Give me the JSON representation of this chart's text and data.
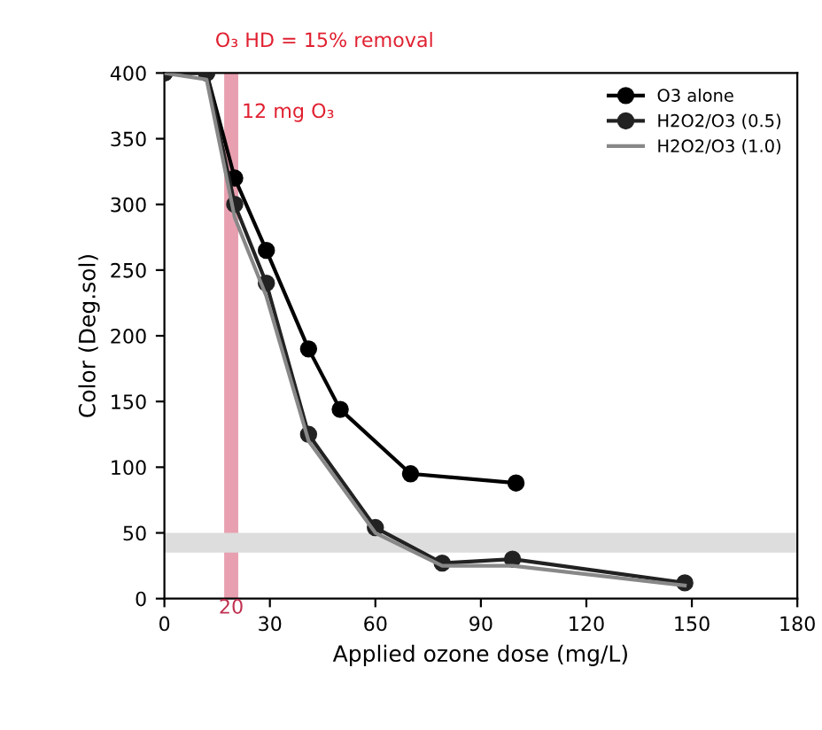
{
  "chart_data": {
    "type": "line",
    "xlabel": "Applied ozone dose (mg/L)",
    "ylabel": "Color (Deg.sol)",
    "xlim": [
      0,
      180
    ],
    "xticks": [
      0,
      30,
      60,
      90,
      120,
      150,
      180
    ],
    "ylim": [
      0,
      400
    ],
    "yticks": [
      0,
      50,
      100,
      150,
      200,
      250,
      300,
      350,
      400
    ],
    "series": [
      {
        "name": "O3 alone",
        "color": "#000000",
        "marker": "circle",
        "x": [
          0,
          12,
          20,
          29,
          41,
          50,
          70,
          100
        ],
        "values": [
          400,
          400,
          320,
          265,
          190,
          144,
          95,
          88
        ]
      },
      {
        "name": "H2O2/O3 (0.5)",
        "color": "#222222",
        "marker": "circle",
        "x": [
          0,
          12,
          20,
          29,
          41,
          60,
          79,
          99,
          148
        ],
        "values": [
          400,
          400,
          300,
          240,
          125,
          54,
          27,
          30,
          12
        ]
      },
      {
        "name": "H2O2/O3 (1.0)",
        "color": "#888888",
        "marker": "none",
        "x": [
          0,
          12,
          20,
          29,
          41,
          60,
          79,
          99,
          148
        ],
        "values": [
          400,
          395,
          290,
          230,
          120,
          50,
          25,
          25,
          10
        ]
      }
    ],
    "bands": [
      {
        "axis": "x",
        "from": 17,
        "to": 21,
        "label": "20",
        "color": "#e8a0b0"
      },
      {
        "axis": "y",
        "from": 35,
        "to": 50,
        "color": "#dddddd"
      }
    ],
    "annotations": [
      "O₃ HD = 15% removal",
      {
        "text": "12 mg O₃",
        "x": 22,
        "y": 370
      }
    ],
    "legend": "top right",
    "grid": false
  }
}
